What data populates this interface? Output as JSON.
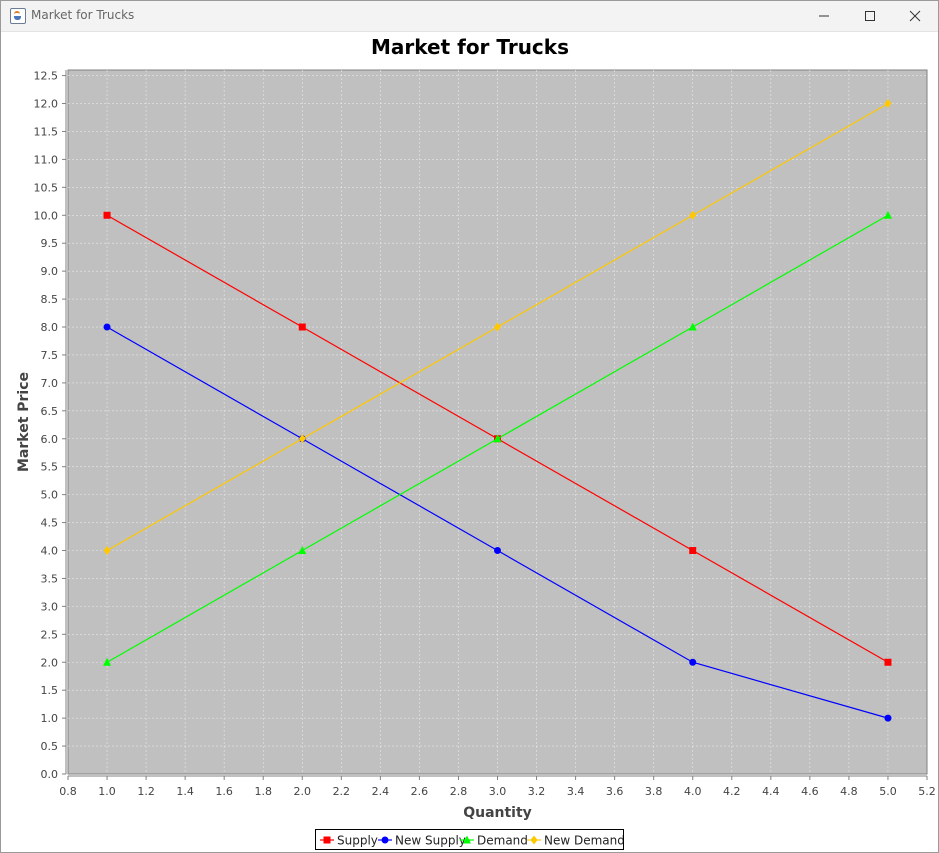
{
  "window": {
    "title": "Market for Trucks",
    "icon": "java-cup-icon",
    "controls": [
      "minimize-icon",
      "maximize-icon",
      "close-icon"
    ]
  },
  "chart_data": {
    "type": "line",
    "title": "Market for Trucks",
    "xlabel": "Quantity",
    "ylabel": "Market Price",
    "xlim": [
      0.8,
      5.2
    ],
    "ylim": [
      0.0,
      12.6
    ],
    "x_ticks": [
      "0.8",
      "1.0",
      "1.2",
      "1.4",
      "1.6",
      "1.8",
      "2.0",
      "2.2",
      "2.4",
      "2.6",
      "2.8",
      "3.0",
      "3.2",
      "3.4",
      "3.6",
      "3.8",
      "4.0",
      "4.2",
      "4.4",
      "4.6",
      "4.8",
      "5.0",
      "5.2"
    ],
    "y_ticks": [
      "0.0",
      "0.5",
      "1.0",
      "1.5",
      "2.0",
      "2.5",
      "3.0",
      "3.5",
      "4.0",
      "4.5",
      "5.0",
      "5.5",
      "6.0",
      "6.5",
      "7.0",
      "7.5",
      "8.0",
      "8.5",
      "9.0",
      "9.5",
      "10.0",
      "10.5",
      "11.0",
      "11.5",
      "12.0",
      "12.5"
    ],
    "grid": true,
    "legend_position": "bottom-center",
    "plot_background": "#c0c0c0",
    "gridline_color": "#e8e8e8",
    "series": [
      {
        "name": "Supply",
        "color": "#ff0000",
        "marker": "square",
        "x": [
          1.0,
          2.0,
          3.0,
          4.0,
          5.0
        ],
        "y": [
          10.0,
          8.0,
          6.0,
          4.0,
          2.0
        ]
      },
      {
        "name": "New Supply",
        "color": "#0000ff",
        "marker": "circle",
        "x": [
          1.0,
          2.0,
          3.0,
          4.0,
          5.0
        ],
        "y": [
          8.0,
          6.0,
          4.0,
          2.0,
          1.0
        ]
      },
      {
        "name": "Demand",
        "color": "#00ff00",
        "marker": "triangle",
        "x": [
          1.0,
          2.0,
          3.0,
          4.0,
          5.0
        ],
        "y": [
          2.0,
          4.0,
          6.0,
          8.0,
          10.0
        ]
      },
      {
        "name": "New Demand",
        "color": "#ffc800",
        "marker": "diamond",
        "x": [
          1.0,
          2.0,
          3.0,
          4.0,
          5.0
        ],
        "y": [
          4.0,
          6.0,
          8.0,
          10.0,
          12.0
        ]
      }
    ]
  }
}
